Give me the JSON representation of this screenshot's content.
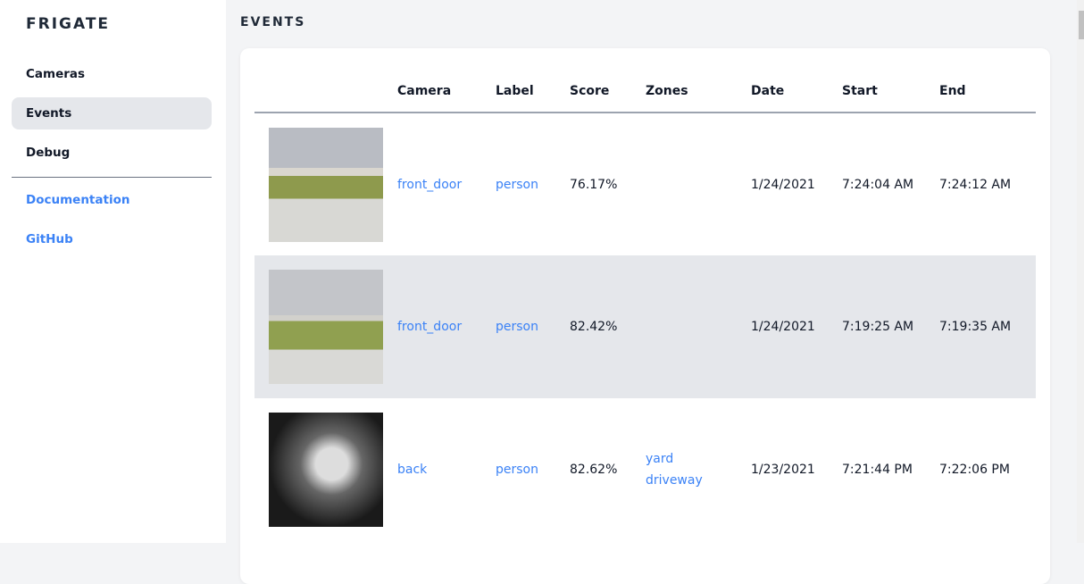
{
  "sidebar": {
    "brand": "FRIGATE",
    "items": [
      {
        "label": "Cameras"
      },
      {
        "label": "Events",
        "active": true
      },
      {
        "label": "Debug"
      }
    ],
    "links": [
      {
        "label": "Documentation"
      },
      {
        "label": "GitHub"
      }
    ]
  },
  "main": {
    "title": "EVENTS",
    "columns": [
      "",
      "Camera",
      "Label",
      "Score",
      "Zones",
      "Date",
      "Start",
      "End"
    ],
    "rows": [
      {
        "camera": "front_door",
        "label": "person",
        "score": "76.17%",
        "zones": [
          "",
          ""
        ],
        "date": "1/24/2021",
        "start": "7:24:04 AM",
        "end": "7:24:12 AM"
      },
      {
        "camera": "front_door",
        "label": "person",
        "score": "82.42%",
        "zones": [
          "",
          ""
        ],
        "date": "1/24/2021",
        "start": "7:19:25 AM",
        "end": "7:19:35 AM"
      },
      {
        "camera": "back",
        "label": "person",
        "score": "82.62%",
        "zones": [
          "yard",
          "driveway"
        ],
        "date": "1/23/2021",
        "start": "7:21:44 PM",
        "end": "7:22:06 PM"
      }
    ]
  },
  "colors": {
    "accent": "#3b82f6",
    "active_bg": "#e5e7eb"
  }
}
